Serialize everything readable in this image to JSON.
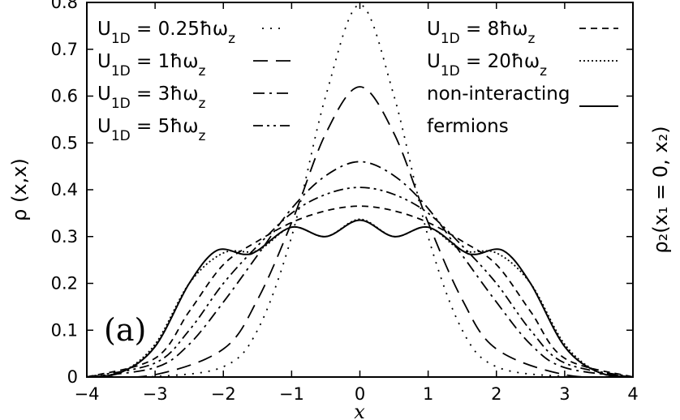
{
  "chart_data": {
    "type": "line",
    "panel_label": "(a)",
    "xlabel": "x",
    "ylabel": "ρ (x,x)",
    "ylabel_right": "ρ₂(x₁ = 0, x₂)",
    "xlim": [
      -4,
      4
    ],
    "ylim": [
      0,
      0.8
    ],
    "x_ticks": [
      -4,
      -3,
      -2,
      -1,
      0,
      1,
      2,
      3,
      4
    ],
    "y_ticks": [
      0,
      0.1,
      0.2,
      0.3,
      0.4,
      0.5,
      0.6,
      0.7,
      0.8
    ],
    "grid": false,
    "legend_position": "top",
    "series": [
      {
        "name": "U1D = 0.25ħωz",
        "style": "dotted",
        "x": [
          -4,
          -3,
          -2,
          -1.5,
          -1,
          -0.5,
          0,
          0.5,
          1,
          1.5,
          2,
          3,
          4
        ],
        "y": [
          0,
          0.001,
          0.022,
          0.1,
          0.3,
          0.6,
          0.795,
          0.6,
          0.3,
          0.1,
          0.022,
          0.001,
          0
        ]
      },
      {
        "name": "U1D = 1ħωz",
        "style": "dashed",
        "x": [
          -4,
          -3,
          -2,
          -1.5,
          -1,
          -0.5,
          0,
          0.5,
          1,
          1.5,
          2,
          3,
          4
        ],
        "y": [
          0,
          0.005,
          0.06,
          0.165,
          0.33,
          0.52,
          0.62,
          0.52,
          0.33,
          0.165,
          0.06,
          0.005,
          0
        ]
      },
      {
        "name": "U1D = 3ħωz",
        "style": "dash-dot",
        "x": [
          -4,
          -3,
          -2.5,
          -2,
          -1.5,
          -1,
          -0.5,
          0,
          0.5,
          1,
          1.5,
          2,
          2.5,
          3,
          4
        ],
        "y": [
          0,
          0.02,
          0.07,
          0.16,
          0.26,
          0.36,
          0.43,
          0.46,
          0.43,
          0.36,
          0.26,
          0.16,
          0.07,
          0.02,
          0
        ]
      },
      {
        "name": "U1D = 5ħωz",
        "style": "dash-dot-dot",
        "x": [
          -4,
          -3,
          -2.5,
          -2,
          -1.5,
          -1,
          -0.5,
          0,
          0.5,
          1,
          1.5,
          2,
          2.5,
          3,
          4
        ],
        "y": [
          0,
          0.03,
          0.1,
          0.2,
          0.28,
          0.35,
          0.39,
          0.405,
          0.39,
          0.35,
          0.28,
          0.2,
          0.1,
          0.03,
          0
        ]
      },
      {
        "name": "U1D = 8ħωz",
        "style": "short-dash",
        "x": [
          -4,
          -3,
          -2.5,
          -2,
          -1.5,
          -1,
          -0.5,
          0,
          0.5,
          1,
          1.5,
          2,
          2.5,
          3,
          4
        ],
        "y": [
          0,
          0.04,
          0.14,
          0.24,
          0.29,
          0.33,
          0.355,
          0.365,
          0.355,
          0.33,
          0.29,
          0.24,
          0.14,
          0.04,
          0
        ]
      },
      {
        "name": "U1D = 20ħωz",
        "style": "fine-dotted",
        "x": [
          -4,
          -3.5,
          -3,
          -2.5,
          -2,
          -1.5,
          -1,
          -0.5,
          0,
          0.5,
          1,
          1.5,
          2,
          2.5,
          3,
          3.5,
          4
        ],
        "y": [
          0,
          0.01,
          0.07,
          0.2,
          0.265,
          0.27,
          0.32,
          0.3,
          0.337,
          0.3,
          0.32,
          0.27,
          0.265,
          0.2,
          0.07,
          0.01,
          0
        ]
      },
      {
        "name": "non-interacting fermions",
        "style": "solid",
        "x": [
          -4,
          -3.5,
          -3,
          -2.5,
          -2.1,
          -1.7,
          -1.5,
          -1,
          -0.5,
          0,
          0.5,
          1,
          1.5,
          1.7,
          2.1,
          2.5,
          3,
          3.5,
          4
        ],
        "y": [
          0,
          0.01,
          0.065,
          0.2,
          0.27,
          0.262,
          0.27,
          0.32,
          0.3,
          0.335,
          0.3,
          0.32,
          0.27,
          0.262,
          0.27,
          0.2,
          0.065,
          0.01,
          0
        ]
      }
    ]
  },
  "legend": {
    "items": [
      {
        "label": "U",
        "sub": "1D",
        "rest": " = 0.25ħω",
        "sub2": "z",
        "style": "dotted"
      },
      {
        "label": "U",
        "sub": "1D",
        "rest": " = 1ħω",
        "sub2": "z",
        "style": "dashed"
      },
      {
        "label": "U",
        "sub": "1D",
        "rest": " = 3ħω",
        "sub2": "z",
        "style": "dash-dot"
      },
      {
        "label": "U",
        "sub": "1D",
        "rest": " = 5ħω",
        "sub2": "z",
        "style": "dash-dot-dot"
      },
      {
        "label": "U",
        "sub": "1D",
        "rest": " = 8ħω",
        "sub2": "z",
        "style": "short-dash"
      },
      {
        "label": "U",
        "sub": "1D",
        "rest": " = 20ħω",
        "sub2": "z",
        "style": "fine-dotted"
      },
      {
        "label": "non-interacting",
        "sub": "",
        "rest": "",
        "sub2": "",
        "style": "solid"
      },
      {
        "label": "fermions",
        "sub": "",
        "rest": "",
        "sub2": "",
        "style": "none"
      }
    ]
  }
}
